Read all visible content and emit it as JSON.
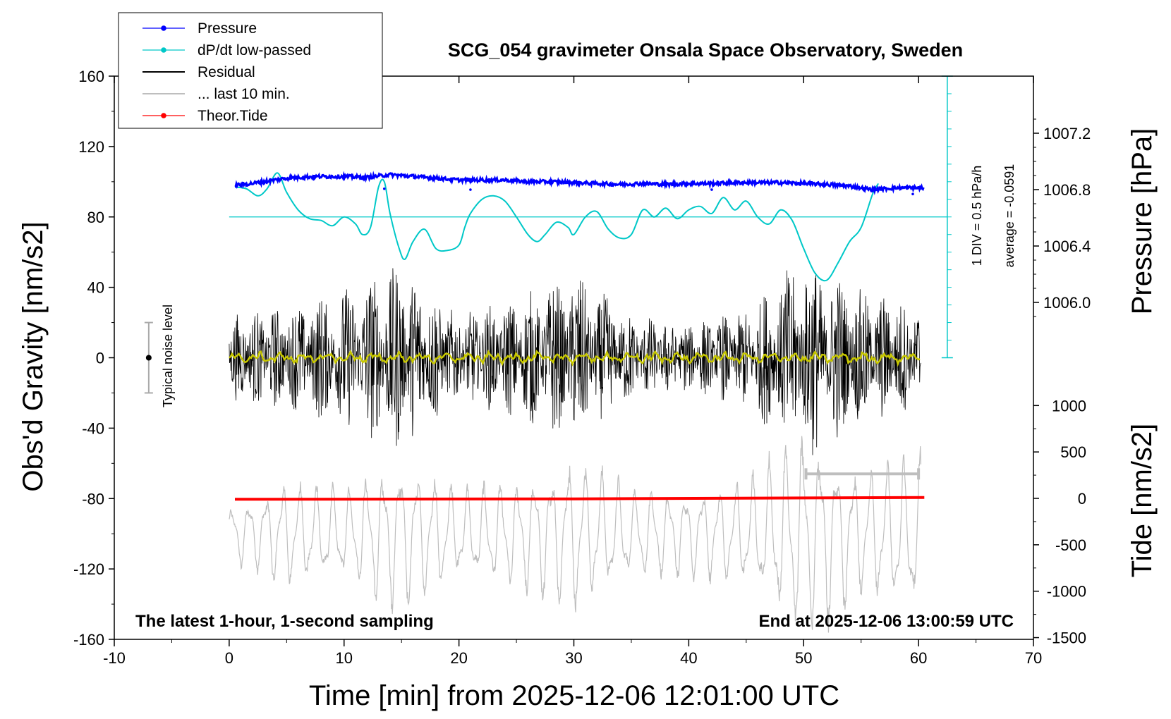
{
  "chart_data": {
    "type": "line",
    "title": "SCG_054 gravimeter Onsala Space Observatory, Sweden",
    "xlabel": "Time [min] from 2025-12-06 12:01:00 UTC",
    "ylabel_left": "Obs'd Gravity [nm/s2]",
    "ylabel_right_top": "Pressure [hPa]",
    "ylabel_right_bottom": "Tide [nm/s2]",
    "xlim": [
      -10,
      70
    ],
    "ylim": [
      -160,
      160
    ],
    "x_ticks": [
      "-10",
      "0",
      "10",
      "20",
      "30",
      "40",
      "50",
      "60",
      "70"
    ],
    "y_ticks": [
      "-160",
      "-120",
      "-80",
      "-40",
      "0",
      "40",
      "80",
      "120",
      "160"
    ],
    "pressure_axis": {
      "ticks": [
        "1006.0",
        "1006.4",
        "1006.8",
        "1007.2"
      ],
      "tick_values": [
        1006.0,
        1006.4,
        1006.8,
        1007.2
      ]
    },
    "tide_axis": {
      "ticks": [
        "-1500",
        "-1000",
        "-500",
        "0",
        "500",
        "1000"
      ],
      "tick_values": [
        -1500,
        -1000,
        -500,
        0,
        500,
        1000
      ]
    },
    "legend": {
      "position": "top-left",
      "entries": [
        {
          "label": "Pressure",
          "color": "#0000ff",
          "marker": "dot"
        },
        {
          "label": "dP/dt low-passed",
          "color": "#00c8c8",
          "marker": "dot"
        },
        {
          "label": "Residual",
          "color": "#000000",
          "marker": "none"
        },
        {
          "label": "... last 10 min.",
          "color": "#bebebe",
          "marker": "none"
        },
        {
          "label": "Theor.Tide",
          "color": "#ff0000",
          "marker": "dot"
        }
      ]
    },
    "annotations": {
      "noise_label": "Typical noise level",
      "div_label": "1 DIV = 0.5 hPa/h",
      "average_label": "average = -0.0591",
      "bottom_left": "The latest 1-hour, 1-second sampling",
      "bottom_right": "End at 2025-12-06 13:00:59 UTC"
    },
    "noise_bar": {
      "x": -7,
      "y_low": -20,
      "y_high": 20
    },
    "dpdt_scale": {
      "x": 62.5,
      "y_from": 0,
      "y_to": 160,
      "baseline_y": 80
    },
    "series": [
      {
        "name": "Pressure",
        "color": "#0000ff",
        "x": [
          0.5,
          2,
          3,
          4,
          5,
          6,
          8,
          10,
          12,
          14,
          16,
          18,
          20,
          22,
          24,
          26,
          28,
          30,
          32,
          34,
          36,
          38,
          40,
          42,
          44,
          46,
          48,
          50,
          52,
          54,
          56,
          58,
          60.5
        ],
        "y": [
          98,
          99,
          100,
          101,
          102,
          102.5,
          103,
          103,
          102.5,
          104,
          103,
          102,
          101,
          101,
          101,
          100,
          100,
          99.5,
          99,
          98.5,
          99,
          98.5,
          99,
          99,
          99.5,
          99.5,
          99.5,
          99,
          98.5,
          97.5,
          95.5,
          96.5,
          96.5
        ]
      },
      {
        "name": "dP/dt low-passed",
        "color": "#00c8c8",
        "x": [
          0.5,
          1.5,
          2.5,
          3.3,
          4.2,
          5,
          6,
          7,
          8,
          9,
          10,
          11,
          11.6,
          12.3,
          13,
          13.5,
          14,
          14.8,
          15.3,
          16,
          17,
          18,
          19,
          20,
          20.5,
          21,
          22,
          23,
          24,
          25,
          26,
          26.8,
          27.5,
          28.5,
          29.5,
          30,
          31,
          32,
          33,
          34,
          35,
          36,
          37,
          38,
          39,
          40,
          41,
          42,
          43,
          44,
          45,
          46,
          47,
          48,
          49,
          50,
          51,
          52,
          53,
          54,
          55,
          56,
          56.5
        ],
        "y": [
          97,
          96,
          92,
          96,
          105,
          94,
          84,
          79,
          78,
          75,
          80,
          76,
          70,
          74,
          97,
          100,
          82,
          62,
          56,
          66,
          73,
          62,
          61,
          64,
          74,
          82,
          90,
          92,
          89,
          80,
          70,
          66,
          70,
          77,
          74,
          70,
          80,
          83,
          73,
          68,
          70,
          84,
          80,
          85,
          79,
          84,
          86,
          82,
          91,
          84,
          89,
          80,
          76,
          84,
          78,
          62,
          48,
          44,
          54,
          66,
          74,
          93,
          99
        ]
      },
      {
        "name": "Residual",
        "color": "#000000",
        "amplitude_envelope": {
          "x": [
            0,
            5,
            10,
            15,
            20,
            25,
            30,
            35,
            40,
            45,
            50,
            55,
            60
          ],
          "y": [
            25,
            30,
            40,
            55,
            25,
            35,
            50,
            25,
            20,
            28,
            60,
            40,
            30
          ]
        }
      },
      {
        "name": "... last 10 min.",
        "color": "#bebebe",
        "offset_nm_s2": -100,
        "amplitude_envelope": {
          "x": [
            0,
            5,
            10,
            15,
            20,
            25,
            30,
            35,
            40,
            45,
            50,
            55,
            60
          ],
          "y": [
            15,
            30,
            25,
            45,
            25,
            30,
            45,
            25,
            25,
            30,
            60,
            35,
            45
          ]
        }
      },
      {
        "name": "Theor.Tide",
        "color": "#ff0000",
        "axis": "tide",
        "x": [
          0.5,
          30,
          60.5
        ],
        "y": [
          -10,
          -5,
          10
        ]
      },
      {
        "name": "Residual low-passed",
        "color": "#c8c800"
      }
    ]
  }
}
